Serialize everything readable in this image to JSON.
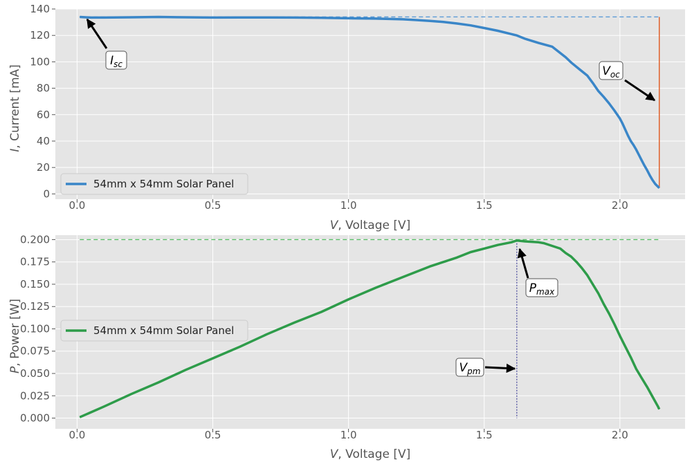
{
  "chart_data": [
    {
      "type": "line",
      "xlabel_var": "V",
      "xlabel_rest": ", Voltage [V]",
      "ylabel_var": "I",
      "ylabel_rest": ", Current [mA]",
      "xlim": [
        -0.08,
        2.24
      ],
      "ylim": [
        -4,
        140
      ],
      "xticks": [
        0.0,
        0.5,
        1.0,
        1.5,
        2.0
      ],
      "xtick_labels": [
        "0.0",
        "0.5",
        "1.0",
        "1.5",
        "2.0"
      ],
      "yticks": [
        0,
        20,
        40,
        60,
        80,
        100,
        120,
        140
      ],
      "ytick_labels": [
        "0",
        "20",
        "40",
        "60",
        "80",
        "100",
        "120",
        "140"
      ],
      "grid": true,
      "legend_position": "lower-left",
      "series": [
        {
          "name": "54mm x 54mm Solar Panel",
          "color": "#3a86c8",
          "x": [
            0.01,
            0.05,
            0.1,
            0.2,
            0.3,
            0.4,
            0.5,
            0.6,
            0.7,
            0.8,
            0.9,
            1.0,
            1.1,
            1.2,
            1.25,
            1.3,
            1.35,
            1.4,
            1.45,
            1.5,
            1.55,
            1.6,
            1.62,
            1.65,
            1.7,
            1.75,
            1.8,
            1.82,
            1.85,
            1.88,
            1.9,
            1.92,
            1.94,
            1.96,
            1.98,
            2.0,
            2.01,
            2.02,
            2.03,
            2.04,
            2.05,
            2.06,
            2.07,
            2.08,
            2.09,
            2.1,
            2.11,
            2.12,
            2.13,
            2.14,
            2.145
          ],
          "y": [
            134,
            133.5,
            133.5,
            133.7,
            134,
            133.7,
            133.5,
            133.6,
            133.6,
            133.5,
            133.3,
            133,
            132.7,
            132.2,
            131.6,
            131,
            130.2,
            129,
            127.6,
            125.6,
            123.5,
            121,
            120,
            117.5,
            114.3,
            111.5,
            103.5,
            99.5,
            94.5,
            89.5,
            84,
            78,
            73.5,
            68.5,
            63,
            57,
            53,
            48.5,
            44,
            40,
            37,
            33.5,
            29.5,
            25.5,
            21.5,
            18,
            14,
            10.5,
            7.5,
            5.5,
            4.5
          ]
        }
      ],
      "guides": {
        "isc": 134,
        "voc_x": 2.145,
        "voc_y": 4.5
      },
      "annotations": [
        {
          "main": "I",
          "sub": "sc",
          "label": "Isc",
          "x": 0.01,
          "y": 134
        },
        {
          "main": "V",
          "sub": "oc",
          "label": "Voc",
          "x": 2.145,
          "y": 70
        }
      ]
    },
    {
      "type": "line",
      "xlabel_var": "V",
      "xlabel_rest": ", Voltage [V]",
      "ylabel_var": "P",
      "ylabel_rest": ", Power [W]",
      "xlim": [
        -0.08,
        2.24
      ],
      "ylim": [
        -0.012,
        0.205
      ],
      "xticks": [
        0.0,
        0.5,
        1.0,
        1.5,
        2.0
      ],
      "xtick_labels": [
        "0.0",
        "0.5",
        "1.0",
        "1.5",
        "2.0"
      ],
      "yticks": [
        0.0,
        0.025,
        0.05,
        0.075,
        0.1,
        0.125,
        0.15,
        0.175,
        0.2
      ],
      "ytick_labels": [
        "0.000",
        "0.025",
        "0.050",
        "0.075",
        "0.100",
        "0.125",
        "0.150",
        "0.175",
        "0.200"
      ],
      "grid": true,
      "legend_position": "center-left",
      "series": [
        {
          "name": "54mm x 54mm Solar Panel",
          "color": "#2e9c4a",
          "x": [
            0.01,
            0.1,
            0.2,
            0.3,
            0.4,
            0.5,
            0.6,
            0.7,
            0.8,
            0.9,
            1.0,
            1.1,
            1.2,
            1.3,
            1.4,
            1.45,
            1.5,
            1.55,
            1.6,
            1.62,
            1.65,
            1.7,
            1.72,
            1.75,
            1.78,
            1.8,
            1.82,
            1.84,
            1.86,
            1.88,
            1.9,
            1.92,
            1.94,
            1.96,
            1.98,
            2.0,
            2.02,
            2.04,
            2.06,
            2.08,
            2.1,
            2.12,
            2.14,
            2.145
          ],
          "y": [
            0.001,
            0.013,
            0.027,
            0.04,
            0.054,
            0.067,
            0.08,
            0.094,
            0.107,
            0.119,
            0.133,
            0.146,
            0.158,
            0.17,
            0.18,
            0.186,
            0.19,
            0.194,
            0.197,
            0.199,
            0.198,
            0.197,
            0.196,
            0.193,
            0.19,
            0.185,
            0.181,
            0.175,
            0.168,
            0.16,
            0.15,
            0.14,
            0.128,
            0.117,
            0.105,
            0.092,
            0.08,
            0.068,
            0.055,
            0.045,
            0.035,
            0.024,
            0.013,
            0.01
          ]
        }
      ],
      "guides": {
        "pmax": 0.199,
        "vpm": 1.62
      },
      "annotations": [
        {
          "main": "P",
          "sub": "max",
          "label": "Pmax",
          "x": 1.62,
          "y": 0.199
        },
        {
          "main": "V",
          "sub": "pm",
          "label": "Vpm",
          "x": 1.62,
          "y": 0.056
        }
      ]
    }
  ]
}
